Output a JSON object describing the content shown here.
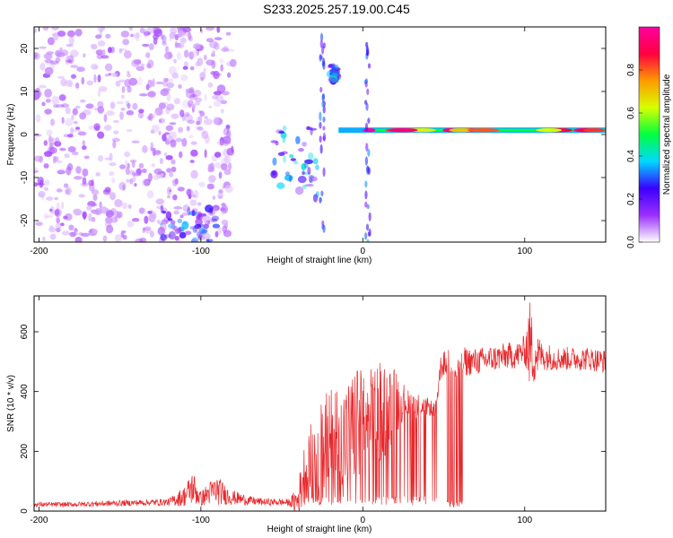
{
  "title": "S233.2025.257.19.00.C45",
  "chart_data": [
    {
      "type": "heatmap",
      "xlabel": "Height of straight line (km)",
      "ylabel": "Frequency (Hz)",
      "xlim": [
        -203,
        150
      ],
      "ylim": [
        -25,
        25
      ],
      "xticks": [
        -200,
        -100,
        0,
        100
      ],
      "yticks": [
        -20,
        -10,
        0,
        10,
        20
      ],
      "colorbar": {
        "label": "Normalized spectral amplitude",
        "range": [
          0,
          1
        ],
        "ticks": [
          0.0,
          0.2,
          0.4,
          0.6,
          0.8
        ],
        "tick_labels": [
          "0.0",
          "0.2",
          "0.4",
          "0.6",
          "0.8"
        ],
        "colors": [
          "#ffffff",
          "#9b30ff",
          "#3a00ff",
          "#00d8ff",
          "#00ff40",
          "#d8ff00",
          "#ff9a00",
          "#ff0040",
          "#ff00a0"
        ]
      },
      "features": [
        {
          "name": "scattered noise",
          "x_range": [
            -203,
            -80
          ],
          "f_range": [
            -25,
            25
          ],
          "amplitude": 0.1
        },
        {
          "name": "low band cluster",
          "x_range": [
            -125,
            -90
          ],
          "f_range": [
            -25,
            -17
          ],
          "amplitude": 0.3
        },
        {
          "name": "descending streak",
          "x_range": [
            -55,
            -28
          ],
          "f_range": [
            -15,
            2
          ],
          "amplitude": 0.35
        },
        {
          "name": "high blob",
          "x_range": [
            -20,
            -15
          ],
          "f_range": [
            12,
            16
          ],
          "amplitude": 0.35
        },
        {
          "name": "narrow tone",
          "x_range": [
            -15,
            150
          ],
          "f_range": [
            0,
            2
          ],
          "amplitude": 0.95
        }
      ]
    },
    {
      "type": "line",
      "xlabel": "Height of straight line (km)",
      "ylabel": "SNR (10 * v/v)",
      "xlim": [
        -203,
        150
      ],
      "ylim": [
        0,
        720
      ],
      "xticks": [
        -200,
        -100,
        0,
        100
      ],
      "yticks": [
        0,
        200,
        400,
        600
      ],
      "color": "#e8282c",
      "series": [
        {
          "name": "SNR",
          "x": [
            -203,
            -180,
            -160,
            -140,
            -120,
            -110,
            -105,
            -100,
            -95,
            -90,
            -85,
            -80,
            -70,
            -60,
            -50,
            -45,
            -40,
            -35,
            -32,
            -30,
            -25,
            -20,
            -15,
            -10,
            -5,
            0,
            5,
            10,
            15,
            20,
            25,
            30,
            35,
            40,
            45,
            48,
            50,
            55,
            58,
            60,
            62,
            70,
            80,
            90,
            95,
            100,
            103,
            105,
            110,
            120,
            130,
            140,
            150
          ],
          "y": [
            22,
            22,
            25,
            28,
            30,
            50,
            80,
            40,
            60,
            70,
            55,
            45,
            35,
            30,
            30,
            28,
            35,
            150,
            170,
            180,
            200,
            220,
            260,
            250,
            280,
            300,
            310,
            330,
            340,
            360,
            370,
            360,
            350,
            350,
            340,
            480,
            490,
            500,
            480,
            490,
            500,
            500,
            510,
            520,
            520,
            540,
            560,
            530,
            520,
            510,
            510,
            510,
            500
          ],
          "noise": [
            8,
            8,
            10,
            10,
            12,
            35,
            60,
            25,
            40,
            50,
            35,
            25,
            15,
            12,
            12,
            12,
            60,
            120,
            130,
            150,
            180,
            200,
            200,
            180,
            200,
            180,
            170,
            180,
            150,
            120,
            60,
            50,
            40,
            30,
            25,
            40,
            45,
            50,
            50,
            50,
            50,
            45,
            45,
            45,
            45,
            50,
            150,
            120,
            50,
            40,
            40,
            40,
            40
          ]
        }
      ]
    }
  ]
}
